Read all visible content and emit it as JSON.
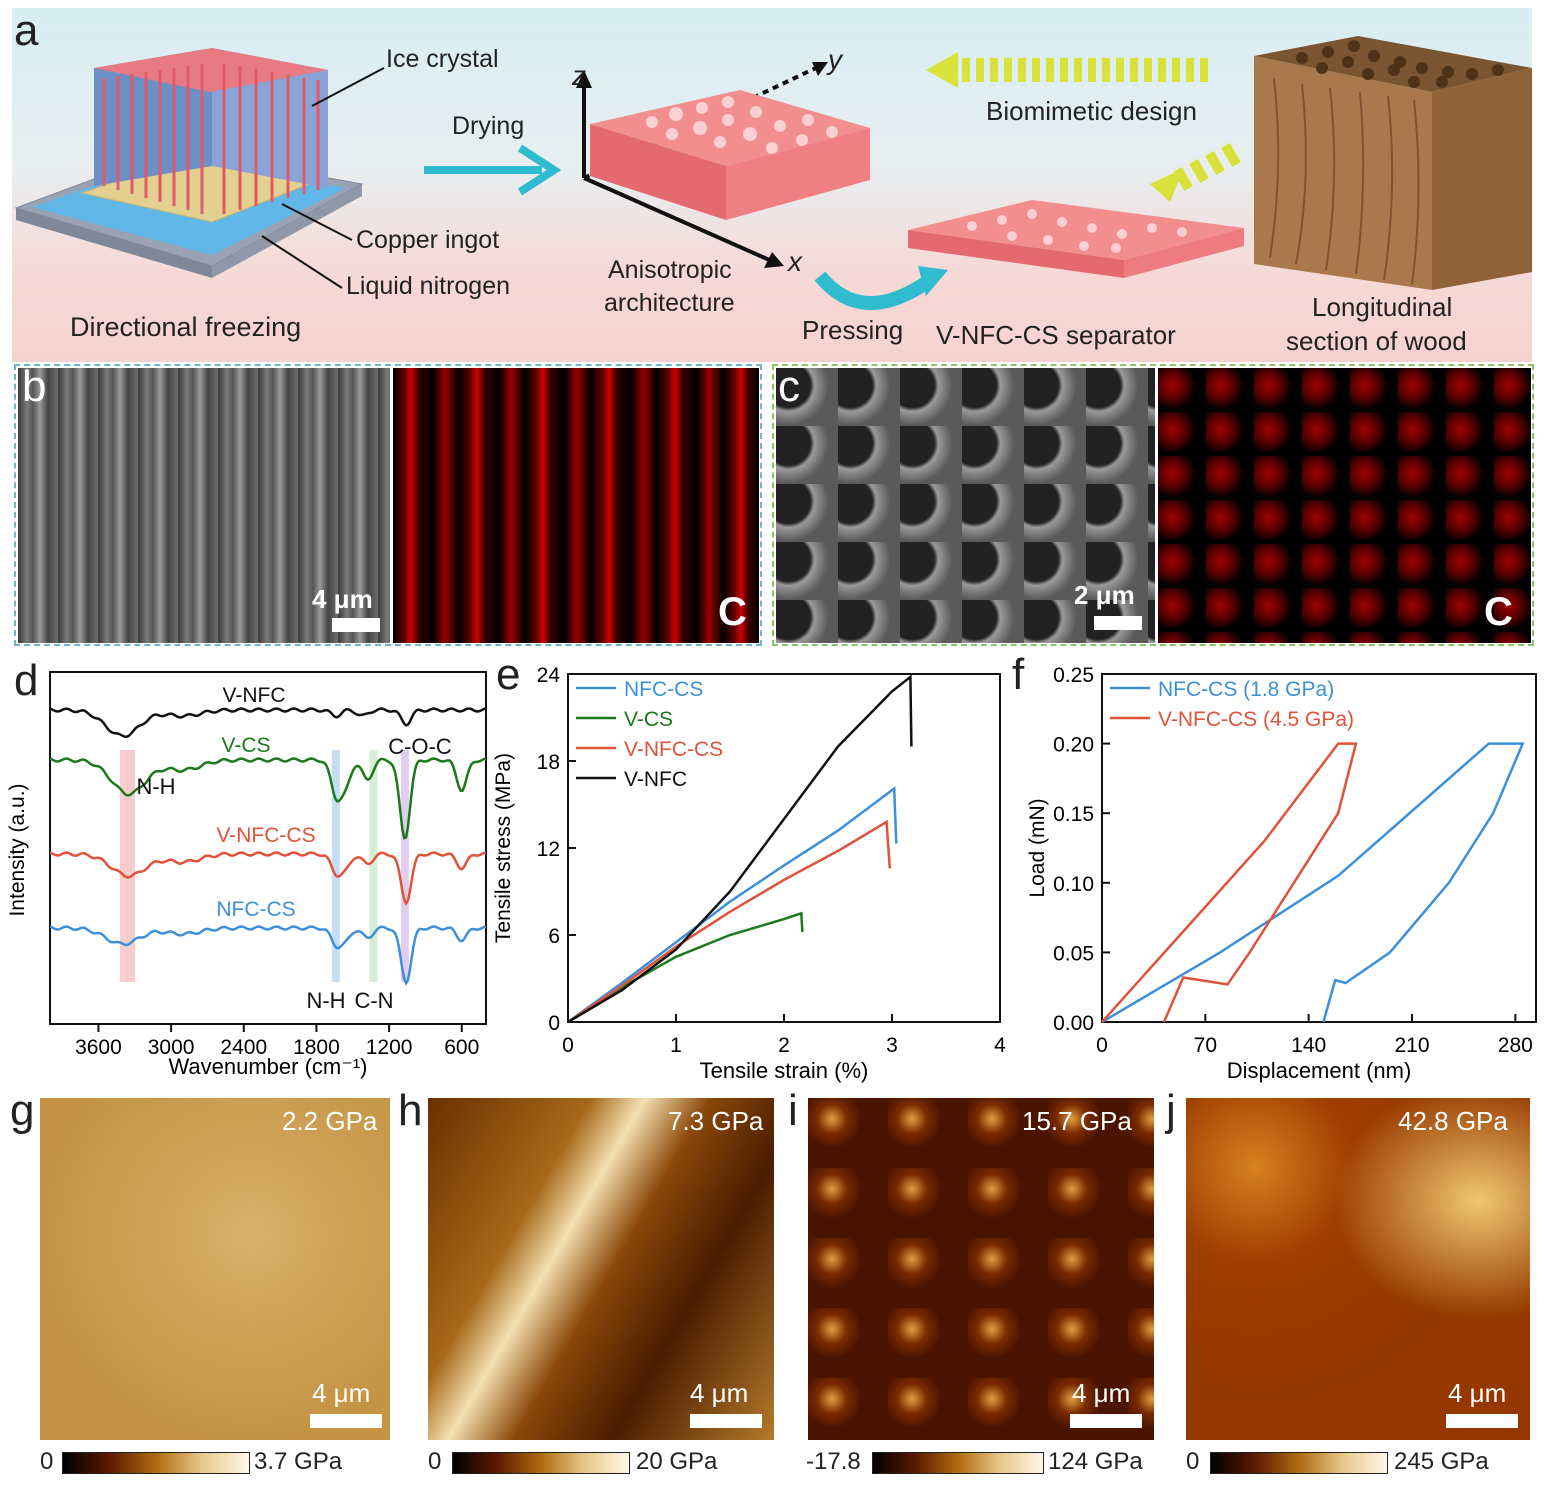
{
  "panel_a": {
    "label": "a",
    "ice_crystal": "Ice crystal",
    "copper_ingot": "Copper ingot",
    "liquid_nitrogen": "Liquid nitrogen",
    "directional_freezing": "Directional freezing",
    "drying": "Drying",
    "anisotropic_1": "Anisotropic",
    "anisotropic_2": "architecture",
    "axis_x": "x",
    "axis_y": "y",
    "axis_z": "z",
    "biomimetic": "Biomimetic design",
    "pressing": "Pressing",
    "separator": "V-NFC-CS separator",
    "wood_1": "Longitudinal",
    "wood_2": "section of wood"
  },
  "panel_b": {
    "label": "b",
    "scale": "4 μm",
    "element": "C"
  },
  "panel_c": {
    "label": "c",
    "scale": "2 μm",
    "element": "C"
  },
  "panel_g": {
    "label": "g",
    "modulus": "2.2 GPa",
    "scale": "4 μm",
    "cmin": "0",
    "cmax": "3.7 GPa"
  },
  "panel_h": {
    "label": "h",
    "modulus": "7.3 GPa",
    "scale": "4 μm",
    "cmin": "0",
    "cmax": "20 GPa"
  },
  "panel_i": {
    "label": "i",
    "modulus": "15.7 GPa",
    "scale": "4 μm",
    "cmin": "-17.8",
    "cmax": "124 GPa"
  },
  "panel_j": {
    "label": "j",
    "modulus": "42.8 GPa",
    "scale": "4 μm",
    "cmin": "0",
    "cmax": "245 GPa"
  },
  "colors": {
    "nfc_cs": "#3d8fd9",
    "v_cs": "#1a7a1a",
    "v_nfc_cs": "#e0523a",
    "v_nfc": "#111111"
  },
  "chart_data": [
    {
      "panel": "d",
      "type": "line",
      "xlabel": "Wavenumber (cm⁻¹)",
      "ylabel": "Intensity (a.u.)",
      "xlim": [
        4000,
        400
      ],
      "xticks": [
        "3600",
        "3000",
        "2400",
        "1800",
        "1200",
        "600"
      ],
      "series": [
        {
          "name": "V-NFC"
        },
        {
          "name": "V-CS"
        },
        {
          "name": "V-NFC-CS"
        },
        {
          "name": "NFC-CS"
        }
      ],
      "annotations": [
        "N-H",
        "C-O-C",
        "N-H",
        "C-N"
      ]
    },
    {
      "panel": "e",
      "type": "line",
      "xlabel": "Tensile strain (%)",
      "ylabel": "Tensile stress (MPa)",
      "xlim": [
        0,
        4
      ],
      "ylim": [
        0,
        24
      ],
      "xticks": [
        "0",
        "1",
        "2",
        "3",
        "4"
      ],
      "yticks": [
        "0",
        "6",
        "12",
        "18",
        "24"
      ],
      "series": [
        {
          "name": "NFC-CS",
          "points": [
            [
              0,
              0
            ],
            [
              0.5,
              2.7
            ],
            [
              1,
              5.5
            ],
            [
              1.5,
              8.3
            ],
            [
              2,
              10.8
            ],
            [
              2.5,
              13.2
            ],
            [
              3.02,
              16.1
            ],
            [
              3.04,
              12.3
            ]
          ]
        },
        {
          "name": "V-CS",
          "points": [
            [
              0,
              0
            ],
            [
              0.5,
              2.4
            ],
            [
              1,
              4.5
            ],
            [
              1.5,
              6.0
            ],
            [
              2,
              7.1
            ],
            [
              2.16,
              7.5
            ],
            [
              2.17,
              6.2
            ]
          ]
        },
        {
          "name": "V-NFC-CS",
          "points": [
            [
              0,
              0
            ],
            [
              0.5,
              2.5
            ],
            [
              1,
              5.2
            ],
            [
              1.5,
              7.6
            ],
            [
              2,
              9.8
            ],
            [
              2.5,
              11.8
            ],
            [
              2.95,
              13.8
            ],
            [
              2.98,
              10.6
            ]
          ]
        },
        {
          "name": "V-NFC",
          "points": [
            [
              0,
              0
            ],
            [
              0.5,
              2.2
            ],
            [
              1,
              5.0
            ],
            [
              1.5,
              9.0
            ],
            [
              2,
              14.0
            ],
            [
              2.5,
              19.0
            ],
            [
              3,
              22.8
            ],
            [
              3.17,
              23.8
            ],
            [
              3.18,
              19.0
            ]
          ]
        }
      ]
    },
    {
      "panel": "f",
      "type": "line",
      "xlabel": "Displacement (nm)",
      "ylabel": "Load (mN)",
      "xlim": [
        0,
        294
      ],
      "ylim": [
        0,
        0.25
      ],
      "xticks": [
        "0",
        "70",
        "140",
        "210",
        "280"
      ],
      "yticks": [
        "0.00",
        "0.05",
        "0.10",
        "0.15",
        "0.20",
        "0.25"
      ],
      "series": [
        {
          "name": "NFC-CS (1.8 GPa)",
          "points": [
            [
              0,
              0
            ],
            [
              80,
              0.05
            ],
            [
              160,
              0.105
            ],
            [
              262,
              0.2
            ],
            [
              285,
              0.2
            ],
            [
              265,
              0.15
            ],
            [
              235,
              0.1
            ],
            [
              195,
              0.05
            ],
            [
              165,
              0.028
            ],
            [
              158,
              0.03
            ],
            [
              150,
              0
            ]
          ]
        },
        {
          "name": "V-NFC-CS (4.5 GPa)",
          "points": [
            [
              0,
              0
            ],
            [
              55,
              0.065
            ],
            [
              110,
              0.13
            ],
            [
              160,
              0.2
            ],
            [
              172,
              0.2
            ],
            [
              160,
              0.15
            ],
            [
              130,
              0.1
            ],
            [
              100,
              0.05
            ],
            [
              85,
              0.027
            ],
            [
              55,
              0.032
            ],
            [
              42,
              0
            ]
          ]
        }
      ]
    }
  ]
}
